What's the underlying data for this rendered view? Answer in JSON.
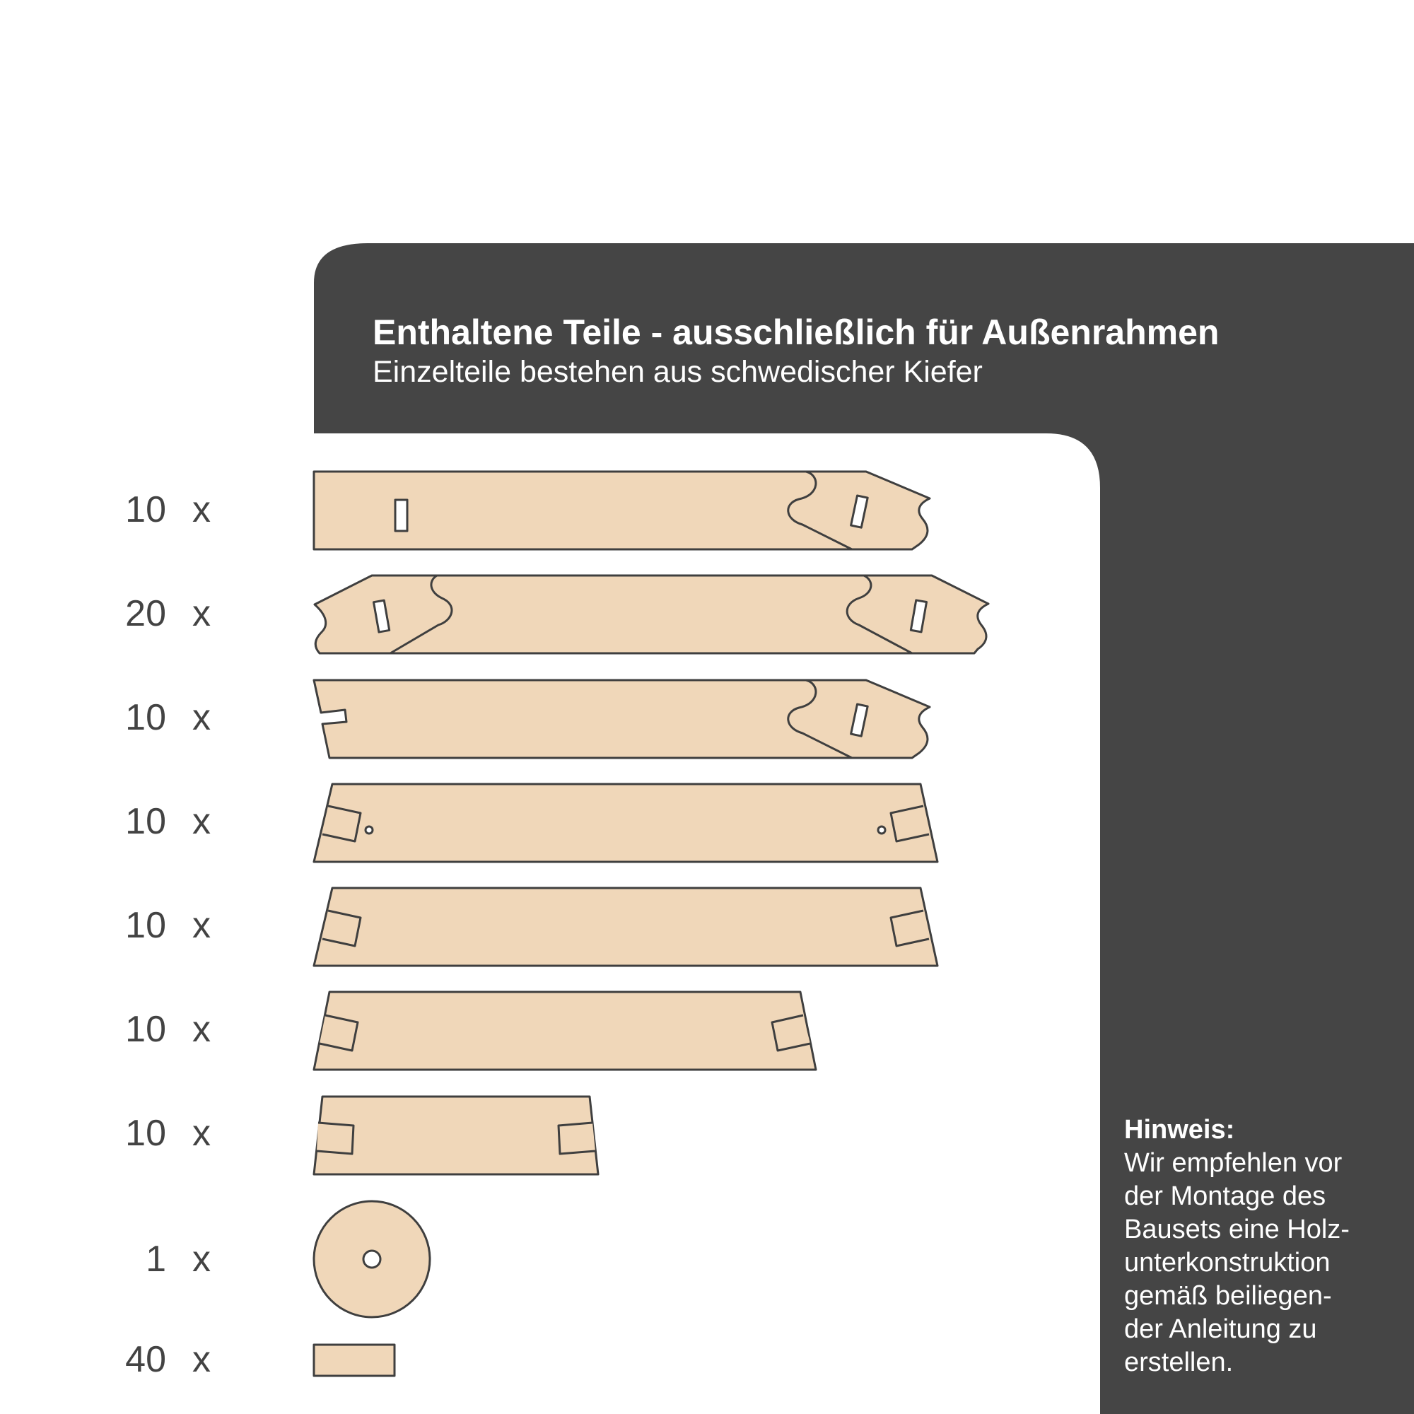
{
  "header": {
    "title": "Enthaltene Teile - ausschließlich für Außenrahmen",
    "subtitle": "Einzelteile bestehen aus schwedischer Kiefer"
  },
  "parts": [
    {
      "quantity": "10",
      "times": "x",
      "icon": "tongue-groove-board-end-piece-icon"
    },
    {
      "quantity": "20",
      "times": "x",
      "icon": "tongue-groove-board-double-icon"
    },
    {
      "quantity": "10",
      "times": "x",
      "icon": "tongue-groove-board-notched-icon"
    },
    {
      "quantity": "10",
      "times": "x",
      "icon": "frame-beam-with-holes-icon"
    },
    {
      "quantity": "10",
      "times": "x",
      "icon": "frame-beam-long-icon"
    },
    {
      "quantity": "10",
      "times": "x",
      "icon": "frame-beam-medium-icon"
    },
    {
      "quantity": "10",
      "times": "x",
      "icon": "frame-beam-short-icon"
    },
    {
      "quantity": "1",
      "times": "x",
      "icon": "round-disc-icon"
    },
    {
      "quantity": "40",
      "times": "x",
      "icon": "small-block-icon"
    }
  ],
  "note": {
    "title": "Hinweis:",
    "body": "Wir empfehlen vor\nder Montage des\nBausets eine Holz-\nunterkonstruktion\ngemäß beiliegen-\nder Anleitung zu\nerstellen."
  },
  "colors": {
    "dark_panel": "#454545",
    "wood": "#f0d7b9",
    "outline": "#3f3f3f",
    "text_dark": "#434343",
    "text_light": "#ffffff"
  }
}
